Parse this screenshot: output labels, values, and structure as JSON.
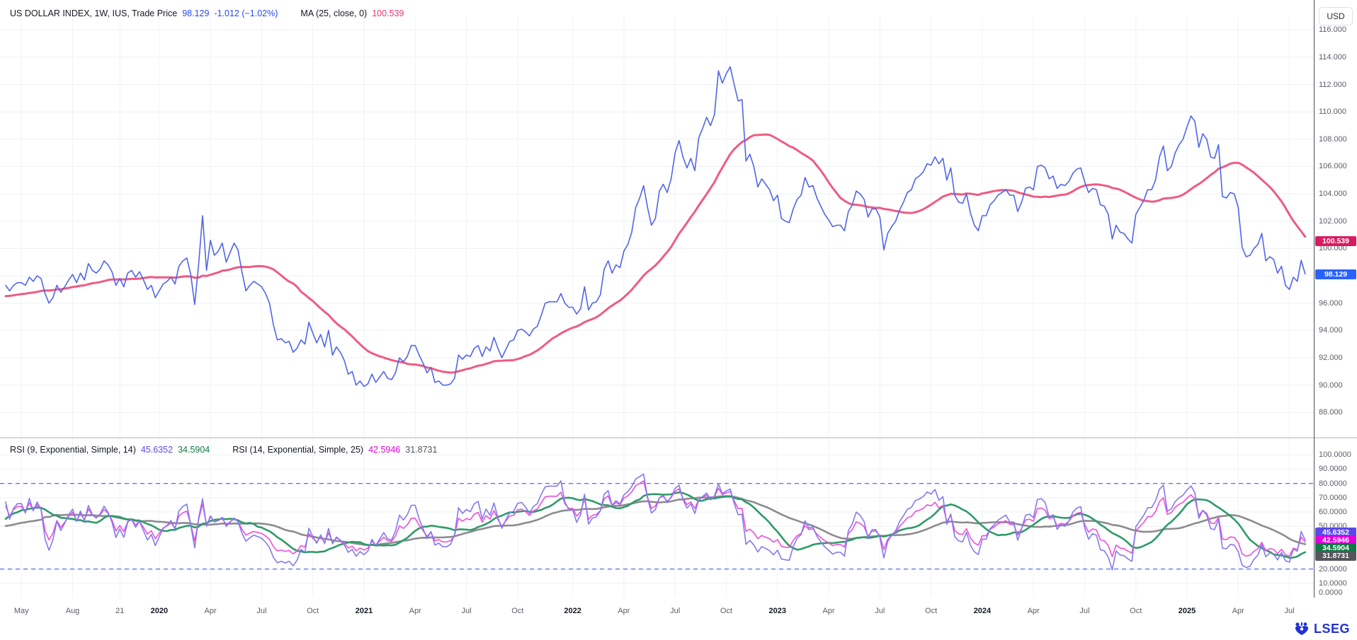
{
  "header": {
    "symbol_title": "US DOLLAR INDEX, 1W, IUS, Trade Price",
    "last_price": "98.129",
    "change": "-1.012 (−1.02%)",
    "ma_label": "MA (25, close, 0)",
    "ma_value": "100.539",
    "currency_button": "USD"
  },
  "rsi_legend": {
    "rsi1_label": "RSI (9, Exponential, Simple, 14)",
    "rsi1_value": "45.6352",
    "rsi1_ma_value": "34.5904",
    "rsi2_label": "RSI (14, Exponential, Simple, 25)",
    "rsi2_value": "42.5946",
    "rsi2_ma_value": "31.8731"
  },
  "badges": {
    "price_ma": {
      "text": "100.539",
      "value": 100.539,
      "color": "#d81b60"
    },
    "price_last": {
      "text": "98.129",
      "value": 98.129,
      "color": "#2962ff"
    },
    "rsi1": {
      "text": "45.6352",
      "y": 753,
      "color": "#5a49e8"
    },
    "rsi2": {
      "text": "42.5946",
      "y": 764,
      "color": "#e100dd"
    },
    "rsi1_ma": {
      "text": "34.5904",
      "y": 775,
      "color": "#0f7a44"
    },
    "rsi2_ma": {
      "text": "31.8731",
      "y": 786,
      "color": "#55565c"
    }
  },
  "logo": {
    "text": "LSEG"
  },
  "price_axis_ticks": [
    {
      "v": 116,
      "label": "116.000"
    },
    {
      "v": 114,
      "label": "114.000"
    },
    {
      "v": 112,
      "label": "112.000"
    },
    {
      "v": 110,
      "label": "110.000"
    },
    {
      "v": 108,
      "label": "108.000"
    },
    {
      "v": 106,
      "label": "106.000"
    },
    {
      "v": 104,
      "label": "104.000"
    },
    {
      "v": 102,
      "label": "102.000"
    },
    {
      "v": 100,
      "label": "100.000"
    },
    {
      "v": 98,
      "label": "98.000"
    },
    {
      "v": 96,
      "label": "96.000"
    },
    {
      "v": 94,
      "label": "94.000"
    },
    {
      "v": 92,
      "label": "92.000"
    },
    {
      "v": 90,
      "label": "90.000"
    },
    {
      "v": 88,
      "label": "88.000"
    }
  ],
  "rsi_axis_ticks": [
    {
      "v": 100,
      "label": "100.0000"
    },
    {
      "v": 90,
      "label": "90.0000"
    },
    {
      "v": 80,
      "label": "80.0000"
    },
    {
      "v": 70,
      "label": "70.0000"
    },
    {
      "v": 60,
      "label": "60.0000"
    },
    {
      "v": 50,
      "label": "50.0000"
    },
    {
      "v": 20,
      "label": "20.0000"
    },
    {
      "v": 10,
      "label": "10.0000"
    },
    {
      "v": 0,
      "label": "0.0000"
    }
  ],
  "chart_data": {
    "type": "line",
    "title": "US DOLLAR INDEX, 1W, IUS, Trade Price",
    "frequency": "weekly",
    "price_ylim": [
      86.2,
      117.0
    ],
    "rsi_ylim": [
      0,
      110
    ],
    "rsi_bands": [
      80,
      20
    ],
    "x_ticks": [
      {
        "i": 4,
        "label": "May"
      },
      {
        "i": 17,
        "label": "Aug"
      },
      {
        "i": 29,
        "label": "21"
      },
      {
        "i": 39,
        "label": "2020",
        "year": true
      },
      {
        "i": 52,
        "label": "Apr"
      },
      {
        "i": 65,
        "label": "Jul"
      },
      {
        "i": 78,
        "label": "Oct"
      },
      {
        "i": 91,
        "label": "2021",
        "year": true
      },
      {
        "i": 104,
        "label": "Apr"
      },
      {
        "i": 117,
        "label": "Jul"
      },
      {
        "i": 130,
        "label": "Oct"
      },
      {
        "i": 144,
        "label": "2022",
        "year": true
      },
      {
        "i": 157,
        "label": "Apr"
      },
      {
        "i": 170,
        "label": "Jul"
      },
      {
        "i": 183,
        "label": "Oct"
      },
      {
        "i": 196,
        "label": "2023",
        "year": true
      },
      {
        "i": 209,
        "label": "Apr"
      },
      {
        "i": 222,
        "label": "Jul"
      },
      {
        "i": 235,
        "label": "Oct"
      },
      {
        "i": 248,
        "label": "2024",
        "year": true
      },
      {
        "i": 261,
        "label": "Apr"
      },
      {
        "i": 274,
        "label": "Jul"
      },
      {
        "i": 287,
        "label": "Oct"
      },
      {
        "i": 300,
        "label": "2025",
        "year": true
      },
      {
        "i": 313,
        "label": "Apr"
      },
      {
        "i": 326,
        "label": "Jul"
      }
    ],
    "series": [
      {
        "name": "Trade Price",
        "color": "#5165e8",
        "width": 1.6,
        "pane": "price"
      },
      {
        "name": "MA (25, close, 0)",
        "color": "#ef5b82",
        "width": 3,
        "pane": "price",
        "derived": "sma25_of_price"
      },
      {
        "name": "RSI (9, Exponential)",
        "color": "#8379f0",
        "width": 1.6,
        "pane": "rsi",
        "derived": "rsi9_of_price"
      },
      {
        "name": "RSI (14, Exponential)",
        "color": "#ee4fd8",
        "width": 1.6,
        "pane": "rsi",
        "derived": "rsi14_of_price"
      },
      {
        "name": "RSI9 smoothing SMA(14)",
        "color": "#2e9b68",
        "width": 2.6,
        "pane": "rsi",
        "derived": "sma14_of_rsi9"
      },
      {
        "name": "RSI14 smoothing SMA(25)",
        "color": "#8b8b90",
        "width": 2.6,
        "pane": "rsi",
        "derived": "sma25_of_rsi14"
      }
    ],
    "values": [
      97.3,
      96.9,
      97.3,
      97.5,
      97.5,
      97.3,
      97.9,
      97.6,
      98.0,
      97.8,
      96.7,
      96.0,
      96.4,
      97.3,
      96.8,
      97.2,
      97.7,
      98.1,
      97.5,
      98.2,
      97.7,
      98.9,
      98.4,
      98.2,
      98.5,
      99.1,
      98.8,
      98.3,
      97.3,
      97.8,
      97.2,
      98.2,
      98.4,
      97.9,
      98.3,
      97.7,
      97.0,
      97.3,
      96.4,
      96.9,
      97.4,
      97.6,
      97.9,
      97.4,
      98.7,
      99.1,
      99.3,
      98.1,
      95.9,
      98.8,
      102.4,
      98.4,
      100.6,
      99.5,
      99.8,
      100.4,
      99.0,
      99.7,
      100.4,
      99.9,
      98.3,
      96.9,
      97.3,
      97.6,
      97.4,
      97.2,
      96.7,
      96.0,
      94.4,
      93.3,
      93.4,
      93.1,
      93.2,
      92.4,
      92.7,
      93.3,
      93.0,
      94.6,
      93.8,
      93.1,
      93.7,
      92.8,
      94.0,
      92.2,
      92.8,
      92.4,
      91.8,
      90.8,
      91.0,
      90.0,
      90.3,
      89.9,
      90.1,
      90.8,
      90.2,
      90.6,
      91.0,
      90.5,
      90.4,
      90.9,
      92.0,
      91.7,
      92.1,
      92.9,
      92.9,
      92.2,
      91.6,
      90.9,
      91.3,
      90.2,
      90.3,
      90.0,
      90.0,
      90.1,
      90.5,
      92.2,
      91.9,
      92.2,
      92.1,
      92.7,
      92.9,
      92.1,
      92.8,
      92.5,
      93.5,
      92.7,
      92.0,
      92.6,
      93.2,
      93.3,
      94.0,
      94.1,
      93.9,
      93.6,
      94.1,
      94.3,
      95.1,
      96.0,
      96.1,
      96.1,
      96.1,
      96.7,
      96.0,
      95.7,
      95.7,
      95.2,
      95.6,
      97.2,
      95.5,
      96.0,
      96.1,
      96.6,
      98.5,
      99.1,
      98.2,
      98.8,
      98.6,
      99.8,
      100.3,
      101.2,
      103.0,
      103.7,
      104.6,
      103.0,
      101.7,
      102.2,
      104.2,
      104.7,
      104.1,
      105.1,
      107.0,
      107.9,
      106.7,
      105.9,
      106.6,
      105.7,
      108.1,
      108.8,
      109.6,
      109.0,
      109.8,
      113.0,
      112.1,
      112.8,
      113.3,
      112.0,
      110.8,
      110.9,
      106.4,
      106.9,
      106.0,
      104.5,
      105.1,
      104.7,
      104.3,
      103.5,
      103.9,
      102.2,
      102.0,
      101.9,
      102.9,
      103.6,
      103.9,
      105.2,
      104.5,
      104.6,
      103.7,
      103.1,
      102.5,
      102.1,
      101.6,
      101.7,
      101.7,
      101.3,
      102.7,
      103.2,
      104.2,
      104.0,
      103.6,
      102.3,
      102.9,
      102.9,
      102.3,
      99.9,
      101.1,
      101.6,
      102.0,
      102.8,
      103.4,
      104.1,
      104.3,
      105.1,
      105.3,
      105.6,
      106.2,
      106.1,
      106.7,
      106.2,
      106.6,
      105.0,
      105.9,
      103.9,
      103.4,
      103.3,
      104.0,
      102.6,
      101.7,
      101.3,
      102.4,
      102.4,
      103.2,
      103.5,
      103.9,
      104.1,
      104.3,
      103.9,
      103.9,
      102.7,
      103.4,
      104.4,
      104.5,
      104.3,
      106.0,
      106.1,
      105.9,
      105.1,
      105.3,
      104.4,
      104.7,
      104.6,
      104.9,
      105.5,
      105.8,
      105.9,
      104.9,
      104.1,
      104.4,
      104.3,
      103.2,
      103.1,
      102.5,
      100.7,
      101.7,
      101.2,
      101.1,
      100.7,
      100.4,
      102.5,
      103.0,
      103.5,
      104.3,
      104.3,
      105.0,
      106.7,
      107.5,
      105.7,
      106.0,
      107.0,
      107.6,
      108.0,
      108.9,
      109.7,
      109.3,
      107.4,
      108.4,
      108.0,
      106.7,
      106.6,
      107.6,
      103.8,
      103.7,
      104.1,
      104.0,
      103.0,
      100.1,
      99.4,
      99.5,
      100.0,
      100.3,
      101.1,
      99.1,
      99.4,
      99.2,
      98.2,
      98.7,
      97.3,
      97.0,
      97.9,
      97.6,
      99.141,
      98.129
    ]
  }
}
